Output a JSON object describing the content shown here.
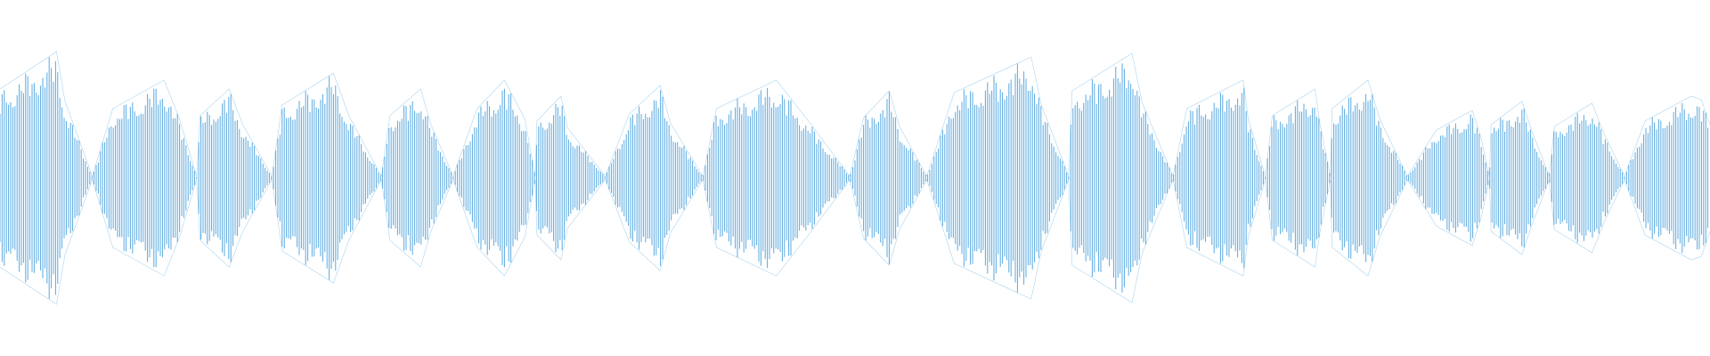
{
  "chart_data": {
    "type": "waveform",
    "color": "#5aa9e0",
    "xlim": [
      0,
      100
    ],
    "ylim": [
      -1,
      1
    ],
    "x": [
      0,
      3.3,
      3.8,
      5.4,
      6.6,
      9.6,
      10.5,
      11.5,
      11.7,
      13.4,
      14.2,
      15.9,
      16.5,
      19.5,
      20.4,
      22.3,
      22.8,
      24.6,
      25.2,
      26.5,
      27.9,
      29.5,
      30.7,
      31.3,
      31.4,
      32.8,
      33.2,
      35.4,
      36.8,
      38.6,
      39.2,
      41.1,
      41.9,
      45.4,
      47.2,
      49.7,
      50.5,
      52.0,
      52.6,
      54.2,
      55.8,
      60.3,
      60.9,
      62.5,
      62.7,
      66.2,
      66.8,
      68.6,
      69.4,
      72.7,
      73.0,
      74.0,
      74.4,
      76.9,
      77.2,
      77.8,
      77.9,
      80.0,
      80.7,
      82.3,
      84.0,
      86.1,
      86.6,
      87.1,
      87.2,
      89.0,
      89.6,
      90.6,
      90.9,
      93.1,
      93.8,
      95.0,
      96.2,
      98.9,
      99.5,
      100
    ],
    "values": [
      0.5,
      0.71,
      0.43,
      0.01,
      0.39,
      0.55,
      0.33,
      0.01,
      0.35,
      0.5,
      0.3,
      0.01,
      0.41,
      0.59,
      0.35,
      0.01,
      0.35,
      0.5,
      0.3,
      0.01,
      0.39,
      0.55,
      0.33,
      0.01,
      0.32,
      0.46,
      0.28,
      0.01,
      0.36,
      0.52,
      0.31,
      0.01,
      0.39,
      0.55,
      0.33,
      0.01,
      0.34,
      0.49,
      0.29,
      0.01,
      0.48,
      0.68,
      0.41,
      0.01,
      0.49,
      0.7,
      0.42,
      0.01,
      0.39,
      0.55,
      0.33,
      0.01,
      0.35,
      0.5,
      0.3,
      0.01,
      0.39,
      0.55,
      0.33,
      0.01,
      0.27,
      0.38,
      0.23,
      0.01,
      0.3,
      0.43,
      0.26,
      0.01,
      0.29,
      0.42,
      0.25,
      0.01,
      0.32,
      0.46,
      0.44,
      0.3
    ]
  }
}
